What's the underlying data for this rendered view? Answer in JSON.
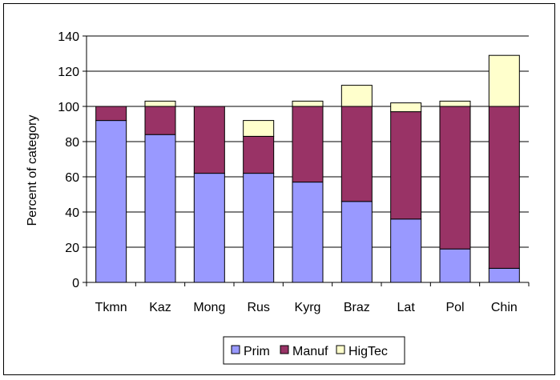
{
  "chart_data": {
    "type": "bar",
    "stacked": true,
    "title": "",
    "xlabel": "",
    "ylabel": "Percent of category",
    "ylim": [
      0,
      140
    ],
    "yticks": [
      0,
      20,
      40,
      60,
      80,
      100,
      120,
      140
    ],
    "grid": true,
    "legend_position": "bottom",
    "categories": [
      "Tkmn",
      "Kaz",
      "Mong",
      "Rus",
      "Kyrg",
      "Braz",
      "Lat",
      "Pol",
      "Chin"
    ],
    "series": [
      {
        "name": "Prim",
        "color": "#9999ff",
        "values": [
          92,
          84,
          62,
          62,
          57,
          46,
          36,
          19,
          8
        ]
      },
      {
        "name": "Manuf",
        "color": "#993366",
        "values": [
          8,
          16,
          38,
          21,
          43,
          54,
          61,
          81,
          92
        ]
      },
      {
        "name": "HigTec",
        "color": "#ffffcc",
        "values": [
          0,
          3,
          0,
          9,
          3,
          12,
          5,
          3,
          29
        ]
      }
    ]
  }
}
